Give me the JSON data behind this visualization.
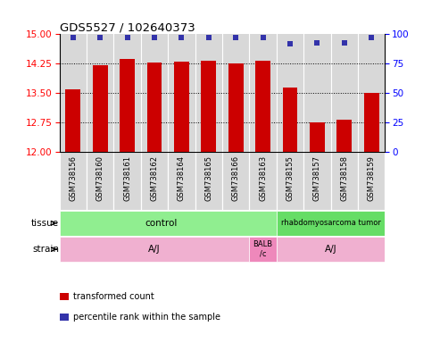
{
  "title": "GDS5527 / 102640373",
  "samples": [
    "GSM738156",
    "GSM738160",
    "GSM738161",
    "GSM738162",
    "GSM738164",
    "GSM738165",
    "GSM738166",
    "GSM738163",
    "GSM738155",
    "GSM738157",
    "GSM738158",
    "GSM738159"
  ],
  "bar_values": [
    13.6,
    14.22,
    14.38,
    14.28,
    14.3,
    14.32,
    14.25,
    14.32,
    13.65,
    12.75,
    12.82,
    13.5
  ],
  "dot_values": [
    97,
    97,
    97,
    97,
    97,
    97,
    97,
    97,
    92,
    93,
    93,
    97
  ],
  "ylim_left": [
    12,
    15
  ],
  "ylim_right": [
    0,
    100
  ],
  "yticks_left": [
    12,
    12.75,
    13.5,
    14.25,
    15
  ],
  "yticks_right": [
    0,
    25,
    50,
    75,
    100
  ],
  "bar_color": "#CC0000",
  "dot_color": "#3333AA",
  "tissue_labels": [
    "control",
    "rhabdomyosarcoma tumor"
  ],
  "strain_labels": [
    "A/J",
    "BALB\n/c",
    "A/J"
  ],
  "legend_items": [
    "transformed count",
    "percentile rank within the sample"
  ],
  "legend_colors": [
    "#CC0000",
    "#3333AA"
  ],
  "bg_color": "#FFFFFF",
  "tick_fontsize": 7.5,
  "bar_width": 0.55,
  "col_bg": "#D8D8D8",
  "tissue_control_color": "#90EE90",
  "tissue_tumor_color": "#66DD66",
  "strain_pink": "#F0B0D0",
  "strain_magenta": "#EE88BB"
}
